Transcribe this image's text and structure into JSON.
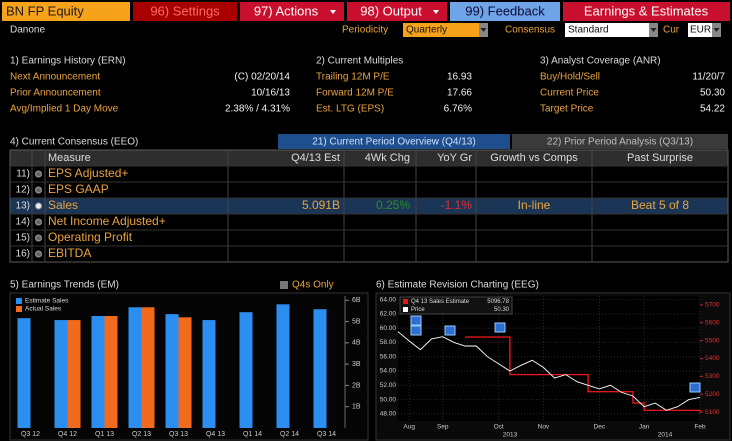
{
  "toolbar": {
    "security": "BN FP Equity",
    "buttons": [
      "96) Settings",
      "97) Actions",
      "98) Output",
      "99) Feedback"
    ],
    "function": "Earnings & Estimates"
  },
  "header": {
    "name": "Danone",
    "periodicity_label": "Periodicity",
    "periodicity": "Quarterly",
    "consensus_label": "Consensus",
    "consensus": "Standard",
    "currency_label": "Cur",
    "currency": "EUR"
  },
  "sections": [
    {
      "title": "1) Earnings History (ERN)",
      "rows": [
        [
          "Next Announcement",
          "(C) 02/20/14"
        ],
        [
          "Prior Announcement",
          "10/16/13"
        ],
        [
          "Avg/Implied 1 Day Move",
          "2.38% / 4.31%"
        ]
      ]
    },
    {
      "title": "2) Current Multiples",
      "rows": [
        [
          "Trailing 12M P/E",
          "16.93"
        ],
        [
          "Forward 12M P/E",
          "17.66"
        ],
        [
          "Est. LTG (EPS)",
          "6.76%"
        ]
      ]
    },
    {
      "title": "3) Analyst Coverage (ANR)",
      "rows": [
        [
          "Buy/Hold/Sell",
          "11/20/7"
        ],
        [
          "Current Price",
          "50.30"
        ],
        [
          "Target Price",
          "54.22"
        ]
      ]
    }
  ],
  "consensus": {
    "title": "4) Current Consensus (EEO)",
    "tabs": [
      "21) Current Period Overview (Q4/13)",
      "22) Prior Period Analysis (Q3/13)"
    ],
    "columns": [
      "Measure",
      "Q4/13 Est",
      "4Wk Chg",
      "YoY Gr",
      "Growth vs Comps",
      "Past Surprise"
    ],
    "rows": [
      [
        "11)",
        "EPS Adjusted+"
      ],
      [
        "12)",
        "EPS GAAP"
      ],
      [
        "13)",
        "Sales",
        "5.091B",
        "0.25%",
        "-1.1%",
        "In-line",
        "Beat 5 of 8"
      ],
      [
        "14)",
        "Net Income Adjusted+"
      ],
      [
        "15)",
        "Operating Profit"
      ],
      [
        "16)",
        "EBITDA"
      ]
    ]
  },
  "chart_data": [
    {
      "type": "bar",
      "title": "5) Earnings Trends (EM)",
      "toggle": "Q4s Only",
      "categories": [
        "Q3 12",
        "Q4 12",
        "Q1 13",
        "Q2 13",
        "Q3 13",
        "Q4 13",
        "Q1 14",
        "Q2 14",
        "Q3 14"
      ],
      "series": [
        {
          "name": "Estimate Sales",
          "color": "#2b8ef0",
          "values": [
            5.16,
            5.07,
            5.26,
            5.67,
            5.35,
            5.07,
            5.44,
            5.81,
            5.58
          ]
        },
        {
          "name": "Actual Sales",
          "color": "#f26b1d",
          "values": [
            null,
            5.07,
            5.26,
            5.67,
            5.2,
            null,
            null,
            null,
            null
          ]
        }
      ],
      "ylim": [
        0,
        6.2
      ],
      "yticks": [
        {
          "value": 1,
          "label": "1B"
        },
        {
          "value": 2,
          "label": "2B"
        },
        {
          "value": 3,
          "label": "3B"
        },
        {
          "value": 4,
          "label": "4B"
        },
        {
          "value": 5,
          "label": "5B"
        },
        {
          "value": 6,
          "label": "6B"
        }
      ],
      "grid": false
    },
    {
      "type": "line",
      "title": "6) Estimate Revision Charting (EEG)",
      "categories": [
        null,
        "Aug",
        null,
        null,
        "Sep",
        null,
        null,
        null,
        null,
        "Oct",
        null,
        null,
        null,
        "Nov",
        null,
        null,
        null,
        null,
        "Dec",
        null,
        null,
        null,
        "Jan",
        null,
        null,
        null,
        null,
        "Feb"
      ],
      "year_labels": [
        "2013",
        "2014"
      ],
      "series": [
        {
          "name": "Q4 13 Sales Estimate",
          "color": "#e01818",
          "axis": "y2",
          "last_value_label": "5096.78",
          "values": [
            null,
            null,
            null,
            null,
            null,
            null,
            5520,
            5520,
            5520,
            5520,
            5310,
            5310,
            5310,
            5310,
            5310,
            5310,
            5310,
            5214,
            5214,
            5214,
            5214,
            5150,
            5110,
            5110,
            5110,
            5110,
            5110,
            5096.78
          ]
        },
        {
          "name": "Price",
          "color": "#ffffff",
          "axis": "y",
          "last_value_label": "50.30",
          "values": [
            59.5,
            58.2,
            57.0,
            58.5,
            58.8,
            58.0,
            57.5,
            57.5,
            56.0,
            55.0,
            54.0,
            54.8,
            55.5,
            54.5,
            53.0,
            53.5,
            52.5,
            52.0,
            51.5,
            52.0,
            51.0,
            50.5,
            49.0,
            49.5,
            48.5,
            49.0,
            50.0,
            50.3
          ]
        }
      ],
      "ylim": [
        47,
        64.5
      ],
      "yticks": [
        {
          "value": 48,
          "label": "48.00"
        },
        {
          "value": 50,
          "label": "50.00"
        },
        {
          "value": 52,
          "label": "52.00"
        },
        {
          "value": 54,
          "label": "54.00"
        },
        {
          "value": 56,
          "label": "56.00"
        },
        {
          "value": 58,
          "label": "58.00"
        },
        {
          "value": 60,
          "label": "60.00"
        },
        {
          "value": 62,
          "label": "62.00"
        },
        {
          "value": 64,
          "label": "64.00"
        }
      ],
      "y2lim": [
        5050,
        5750
      ],
      "y2ticks": [
        5100,
        5200,
        5300,
        5400,
        5500,
        5600,
        5700
      ],
      "grid": true
    }
  ]
}
